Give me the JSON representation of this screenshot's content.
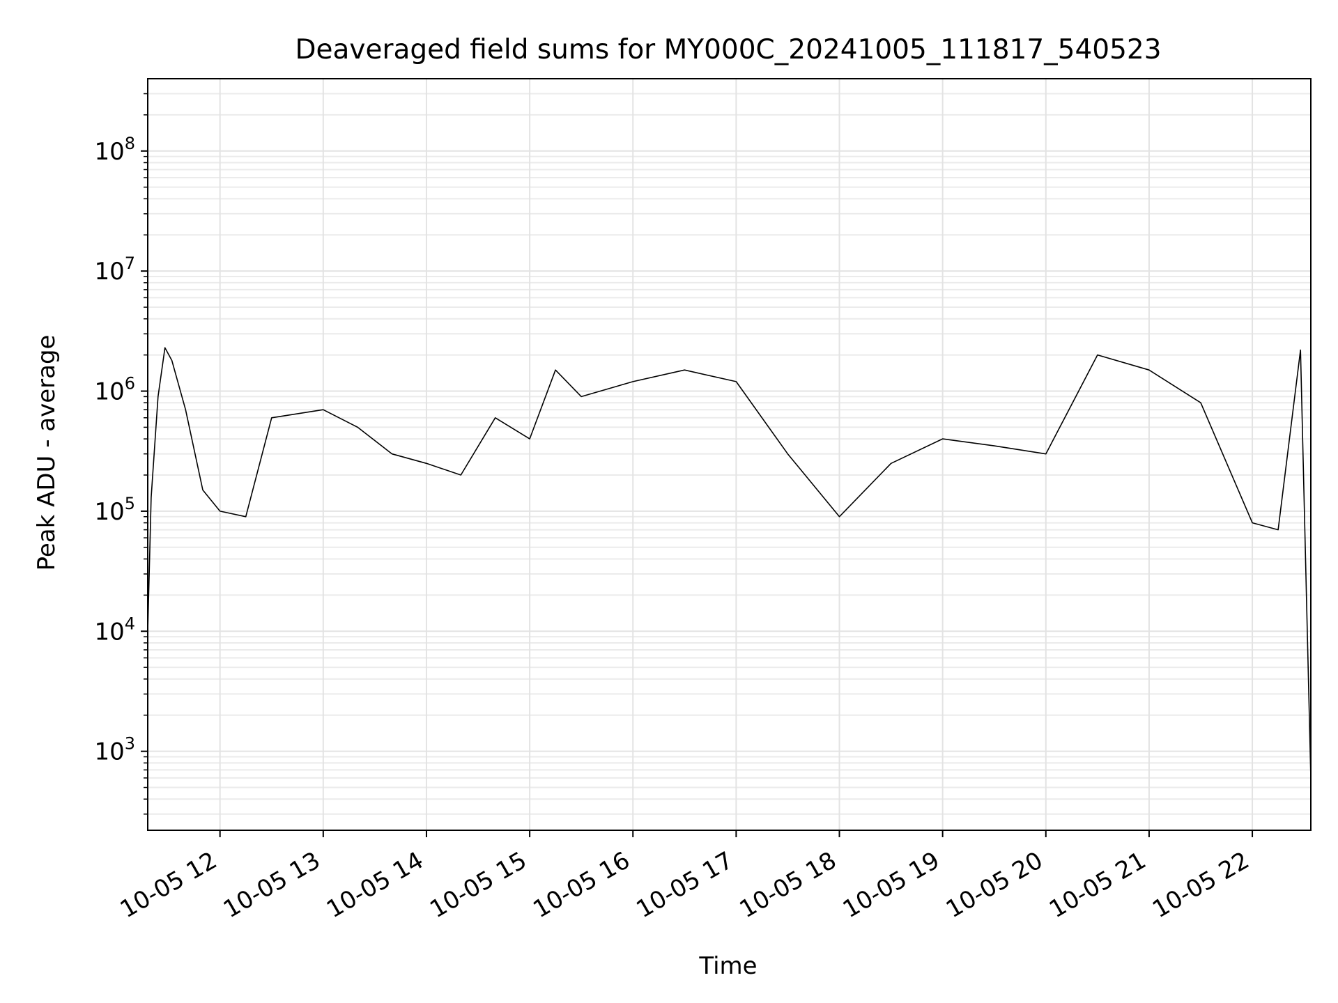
{
  "chart_data": {
    "type": "line",
    "title": "Deaveraged field sums for MY000C_20241005_111817_540523",
    "xlabel": "Time",
    "ylabel": "Peak ADU - average",
    "y_scale": "log",
    "ylim": [
      220,
      400000000
    ],
    "xlim": [
      "2024-10-05 11:18",
      "2024-10-05 22:34"
    ],
    "grid": "major and minor, light gray",
    "line_color": "#000000",
    "x_ticks": [
      "2024-10-05 12:00",
      "2024-10-05 13:00",
      "2024-10-05 14:00",
      "2024-10-05 15:00",
      "2024-10-05 16:00",
      "2024-10-05 17:00",
      "2024-10-05 18:00",
      "2024-10-05 19:00",
      "2024-10-05 20:00",
      "2024-10-05 21:00",
      "2024-10-05 22:00"
    ],
    "x_tick_labels": [
      "10-05 12",
      "10-05 13",
      "10-05 14",
      "10-05 15",
      "10-05 16",
      "10-05 17",
      "10-05 18",
      "10-05 19",
      "10-05 20",
      "10-05 21",
      "10-05 22"
    ],
    "y_ticks": [
      1000,
      10000,
      100000,
      1000000,
      10000000,
      100000000
    ],
    "y_tick_labels": [
      {
        "base": "10",
        "exp": "3"
      },
      {
        "base": "10",
        "exp": "4"
      },
      {
        "base": "10",
        "exp": "5"
      },
      {
        "base": "10",
        "exp": "6"
      },
      {
        "base": "10",
        "exp": "7"
      },
      {
        "base": "10",
        "exp": "8"
      }
    ],
    "series": [
      {
        "x": [
          "2024-10-05 11:18",
          "2024-10-05 11:20",
          "2024-10-05 11:24",
          "2024-10-05 11:28",
          "2024-10-05 11:32",
          "2024-10-05 11:40",
          "2024-10-05 11:50",
          "2024-10-05 12:00",
          "2024-10-05 12:15",
          "2024-10-05 12:30",
          "2024-10-05 13:00",
          "2024-10-05 13:20",
          "2024-10-05 13:40",
          "2024-10-05 14:00",
          "2024-10-05 14:20",
          "2024-10-05 14:40",
          "2024-10-05 15:00",
          "2024-10-05 15:15",
          "2024-10-05 15:30",
          "2024-10-05 16:00",
          "2024-10-05 16:30",
          "2024-10-05 17:00",
          "2024-10-05 17:30",
          "2024-10-05 18:00",
          "2024-10-05 18:30",
          "2024-10-05 19:00",
          "2024-10-05 19:30",
          "2024-10-05 20:00",
          "2024-10-05 20:30",
          "2024-10-05 21:00",
          "2024-10-05 21:30",
          "2024-10-05 22:00",
          "2024-10-05 22:15",
          "2024-10-05 22:28",
          "2024-10-05 22:34"
        ],
        "y": [
          10000,
          130000,
          900000,
          2300000,
          1800000,
          700000,
          150000,
          100000,
          90000,
          600000,
          700000,
          500000,
          300000,
          250000,
          200000,
          600000,
          400000,
          1500000,
          900000,
          1200000,
          1500000,
          1200000,
          300000,
          90000,
          250000,
          400000,
          350000,
          300000,
          2000000,
          1500000,
          800000,
          80000,
          70000,
          2200000,
          600
        ]
      }
    ]
  }
}
